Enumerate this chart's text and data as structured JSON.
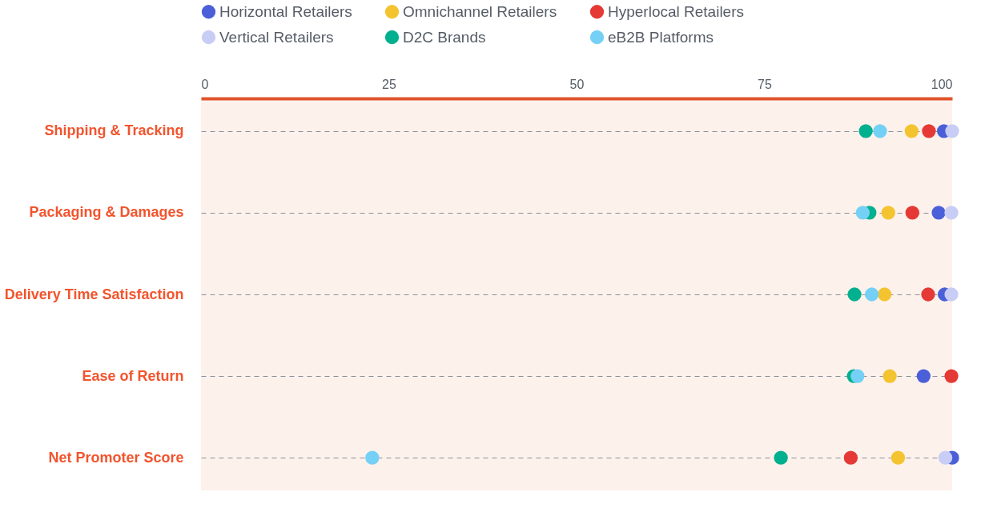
{
  "chart_data": {
    "type": "scatter",
    "categories": [
      "Shipping & Tracking",
      "Packaging & Damages",
      "Delivery Time Satisfaction",
      "Ease of Return",
      "Net Promoter Score"
    ],
    "series": [
      {
        "name": "Horizontal Retailers",
        "color": "#4a5fd8",
        "values": [
          98.9,
          98.2,
          99,
          96.2,
          100
        ]
      },
      {
        "name": "Omnichannel Retailers",
        "color": "#f4c430",
        "values": [
          94.6,
          91.5,
          91,
          91.7,
          92.8
        ]
      },
      {
        "name": "Hyperlocal Retailers",
        "color": "#e53935",
        "values": [
          96.9,
          94.7,
          96.8,
          99.9,
          86.5
        ]
      },
      {
        "name": "Vertical Retailers",
        "color": "#c8cdf5",
        "values": [
          100,
          99.9,
          99.9,
          null,
          99.1
        ]
      },
      {
        "name": "D2C Brands",
        "color": "#00b08e",
        "values": [
          88.5,
          89,
          87,
          86.9,
          77.2
        ]
      },
      {
        "name": "eB2B Platforms",
        "color": "#74d0f5",
        "values": [
          90.4,
          88.1,
          89.3,
          87.4,
          22.8
        ]
      }
    ],
    "orientation": "horizontal",
    "xlim": [
      0,
      100
    ],
    "xticks": [
      0,
      25,
      50,
      75,
      100
    ],
    "grid": "y",
    "legend": "top",
    "marker": "circle"
  }
}
